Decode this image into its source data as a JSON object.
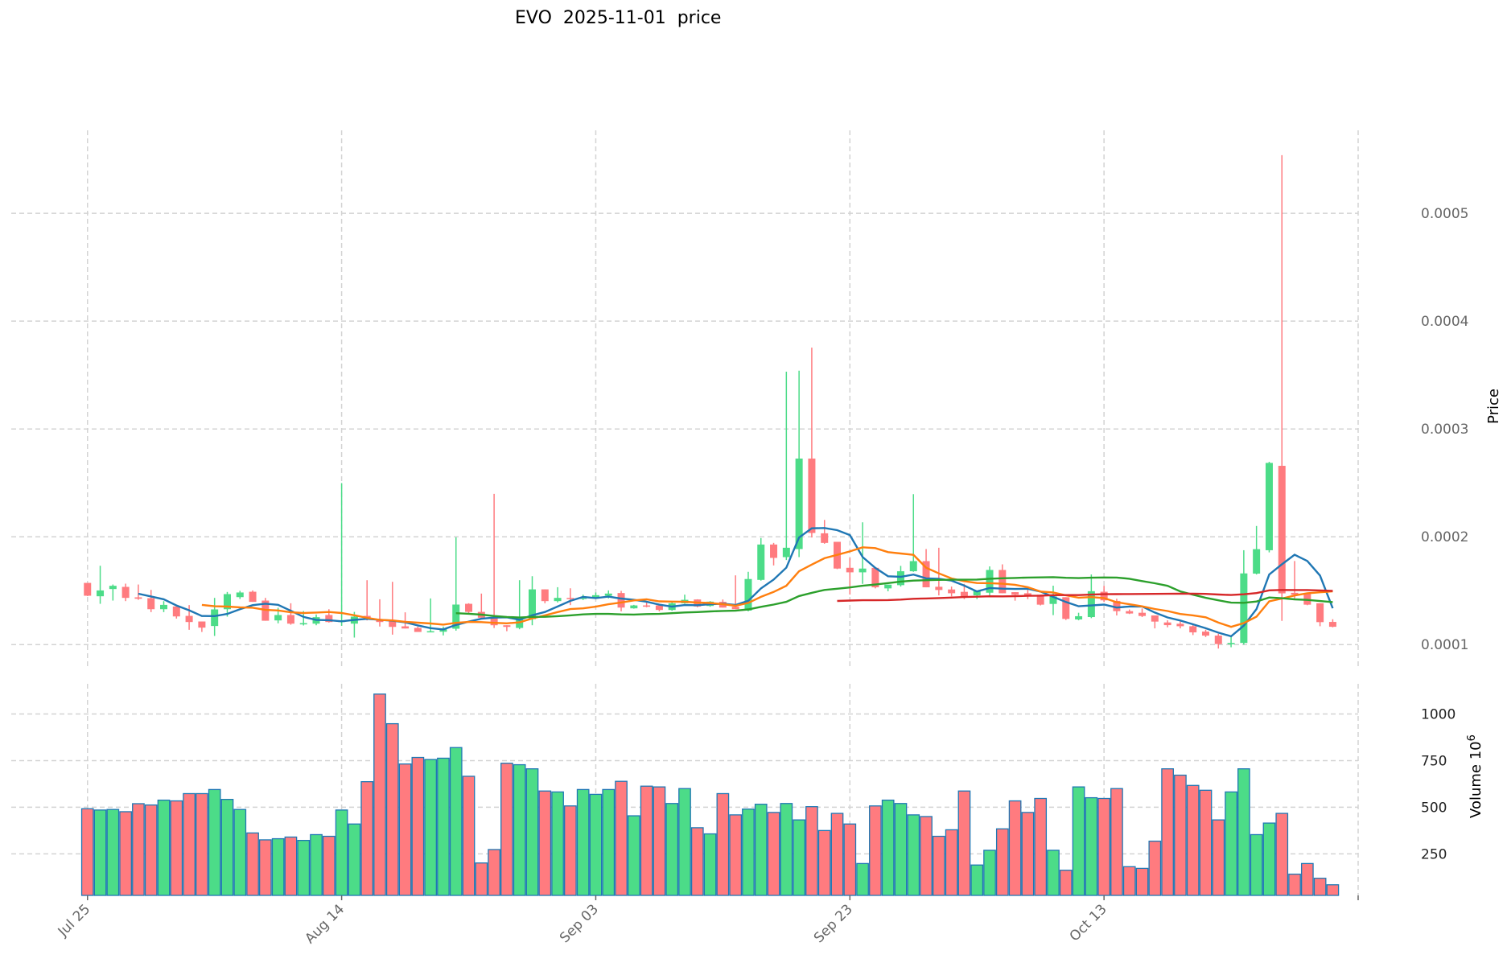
{
  "chart_data": {
    "type": "candlestick",
    "title": "EVO  2025-11-01  price",
    "start_date": "2025-07-25",
    "interval": "1D",
    "ylabel": "Price",
    "volume_ylabel": "Volume  10",
    "volume_ylabel_exp": "6",
    "xtick_labels": [
      {
        "index": 0,
        "label": "Jul 25"
      },
      {
        "index": 20,
        "label": "Aug 14"
      },
      {
        "index": 40,
        "label": "Sep 03"
      },
      {
        "index": 60,
        "label": "Sep 23"
      },
      {
        "index": 80,
        "label": "Oct 13"
      }
    ],
    "price_ticks": [
      {
        "value": 0.0001,
        "label": "0.0001"
      },
      {
        "value": 0.0002,
        "label": "0.0002"
      },
      {
        "value": 0.0003,
        "label": "0.0003"
      },
      {
        "value": 0.0004,
        "label": "0.0004"
      },
      {
        "value": 0.0005,
        "label": "0.0005"
      }
    ],
    "volume_ticks": [
      {
        "value": 250,
        "label": "250"
      },
      {
        "value": 500,
        "label": "500"
      },
      {
        "value": 750,
        "label": "750"
      },
      {
        "value": 1000,
        "label": "1000"
      }
    ],
    "price_ylim": [
      8e-05,
      0.000577
    ],
    "volume_ylim": [
      27,
      1162
    ],
    "xlim": [
      -6,
      100
    ],
    "grid": true,
    "moving_averages": [
      {
        "window": 5,
        "color": "#1f77b4"
      },
      {
        "window": 10,
        "color": "#ff7f0e"
      },
      {
        "window": 30,
        "color": "#2ca02c"
      },
      {
        "window": 60,
        "color": "#d62728"
      }
    ],
    "colors": {
      "up": "#4cdc88",
      "down": "#ff7b7f",
      "volume_edge": "#1f77b4",
      "grid": "#d3d3d3"
    },
    "ohlc": [
      [
        0.0001572,
        0.0001572,
        0.000145,
        0.0001453
      ],
      [
        0.0001448,
        0.0001731,
        0.0001378,
        0.0001502
      ],
      [
        0.0001515,
        0.0001557,
        0.0001408,
        0.0001545
      ],
      [
        0.0001535,
        0.0001565,
        0.0001403,
        0.0001433
      ],
      [
        0.0001438,
        0.0001557,
        0.0001415,
        0.0001425
      ],
      [
        0.000143,
        0.0001507,
        0.0001301,
        0.0001328
      ],
      [
        0.0001328,
        0.0001403,
        0.0001301,
        0.0001368
      ],
      [
        0.0001353,
        0.0001353,
        0.0001241,
        0.0001261
      ],
      [
        0.0001266,
        0.0001366,
        0.0001137,
        0.0001209
      ],
      [
        0.0001214,
        0.0001214,
        0.0001117,
        0.0001157
      ],
      [
        0.0001172,
        0.0001433,
        0.000108,
        0.0001326
      ],
      [
        0.0001328,
        0.0001488,
        0.0001259,
        0.0001468
      ],
      [
        0.000144,
        0.0001498,
        0.0001423,
        0.0001483
      ],
      [
        0.000149,
        0.0001502,
        0.0001396,
        0.0001396
      ],
      [
        0.0001408,
        0.0001433,
        0.0001221,
        0.0001221
      ],
      [
        0.0001224,
        0.0001341,
        0.0001197,
        0.0001274
      ],
      [
        0.0001274,
        0.0001383,
        0.0001184,
        0.0001194
      ],
      [
        0.0001187,
        0.0001311,
        0.0001177,
        0.0001199
      ],
      [
        0.0001194,
        0.0001279,
        0.0001179,
        0.0001254
      ],
      [
        0.0001274,
        0.0001328,
        0.0001204,
        0.0001209
      ],
      [
        0.0001209,
        0.0002498,
        0.0001174,
        0.0001224
      ],
      [
        0.0001194,
        0.0001303,
        0.0001065,
        0.0001259
      ],
      [
        0.0001266,
        0.0001597,
        0.0001224,
        0.0001249
      ],
      [
        0.0001229,
        0.000142,
        0.0001167,
        0.0001209
      ],
      [
        0.0001221,
        0.0001582,
        0.0001092,
        0.0001164
      ],
      [
        0.0001169,
        0.0001299,
        0.0001149,
        0.0001149
      ],
      [
        0.0001154,
        0.0001167,
        0.0001117,
        0.0001117
      ],
      [
        0.0001119,
        0.0001428,
        0.0001114,
        0.0001124
      ],
      [
        0.0001119,
        0.0001167,
        0.0001085,
        0.0001149
      ],
      [
        0.0001147,
        0.0001995,
        0.0001129,
        0.0001371
      ],
      [
        0.0001378,
        0.0001383,
        0.0001291,
        0.0001303
      ],
      [
        0.0001303,
        0.0001473,
        0.0001249,
        0.0001249
      ],
      [
        0.0001249,
        0.0002398,
        0.0001154,
        0.0001179
      ],
      [
        0.0001179,
        0.0001179,
        0.0001124,
        0.0001164
      ],
      [
        0.0001154,
        0.0001597,
        0.0001142,
        0.0001254
      ],
      [
        0.0001236,
        0.0001634,
        0.0001179,
        0.0001512
      ],
      [
        0.0001512,
        0.0001512,
        0.0001383,
        0.0001403
      ],
      [
        0.0001403,
        0.0001532,
        0.0001391,
        0.0001433
      ],
      [
        0.0001433,
        0.0001522,
        0.0001366,
        0.0001423
      ],
      [
        0.0001423,
        0.0001463,
        0.0001413,
        0.0001438
      ],
      [
        0.0001438,
        0.0001483,
        0.0001428,
        0.0001458
      ],
      [
        0.0001453,
        0.0001502,
        0.0001428,
        0.0001473
      ],
      [
        0.0001478,
        0.0001498,
        0.0001308,
        0.0001343
      ],
      [
        0.0001336,
        0.0001368,
        0.0001333,
        0.0001363
      ],
      [
        0.0001363,
        0.0001403,
        0.0001346,
        0.0001351
      ],
      [
        0.0001363,
        0.0001363,
        0.0001308,
        0.0001321
      ],
      [
        0.0001321,
        0.0001393,
        0.0001313,
        0.0001383
      ],
      [
        0.0001383,
        0.0001463,
        0.0001378,
        0.0001415
      ],
      [
        0.0001418,
        0.000142,
        0.0001346,
        0.0001353
      ],
      [
        0.0001358,
        0.0001403,
        0.0001351,
        0.0001398
      ],
      [
        0.0001396,
        0.0001418,
        0.0001343,
        0.0001343
      ],
      [
        0.0001351,
        0.0001642,
        0.0001328,
        0.0001328
      ],
      [
        0.0001315,
        0.0001675,
        0.0001308,
        0.0001608
      ],
      [
        0.00016,
        0.0001988,
        0.0001593,
        0.0001928
      ],
      [
        0.0001928,
        0.0001943,
        0.0001734,
        0.0001804
      ],
      [
        0.0001811,
        0.0003531,
        0.0001784,
        0.0001898
      ],
      [
        0.0001886,
        0.0003541,
        0.0001811,
        0.0002725
      ],
      [
        0.0002725,
        0.0003754,
        0.0001993,
        0.0002035
      ],
      [
        0.0002032,
        0.0002156,
        0.0001935,
        0.0001943
      ],
      [
        0.0001953,
        0.0001953,
        0.00017,
        0.0001705
      ],
      [
        0.0001712,
        0.0001804,
        0.0001464,
        0.000167
      ],
      [
        0.000167,
        0.0002134,
        0.0001563,
        0.0001705
      ],
      [
        0.0001712,
        0.0001712,
        0.0001521,
        0.0001531
      ],
      [
        0.0001521,
        0.0001556,
        0.0001494,
        0.0001556
      ],
      [
        0.0001551,
        0.000173,
        0.0001538,
        0.000168
      ],
      [
        0.000168,
        0.0002395,
        0.0001675,
        0.0001774
      ],
      [
        0.0001774,
        0.0001886,
        0.0001531,
        0.0001531
      ],
      [
        0.0001536,
        0.0001898,
        0.0001456,
        0.0001506
      ],
      [
        0.0001511,
        0.0001538,
        0.0001447,
        0.0001476
      ],
      [
        0.0001489,
        0.0001563,
        0.0001422,
        0.0001447
      ],
      [
        0.0001457,
        0.0001501,
        0.0001422,
        0.0001501
      ],
      [
        0.0001481,
        0.0001725,
        0.0001457,
        0.0001692
      ],
      [
        0.0001692,
        0.0001744,
        0.0001476,
        0.0001476
      ],
      [
        0.0001486,
        0.0001486,
        0.0001407,
        0.0001462
      ],
      [
        0.0001476,
        0.0001514,
        0.0001422,
        0.0001457
      ],
      [
        0.0001462,
        0.0001462,
        0.0001363,
        0.000137
      ],
      [
        0.0001377,
        0.0001546,
        0.0001273,
        0.0001447
      ],
      [
        0.0001439,
        0.0001439,
        0.0001228,
        0.0001238
      ],
      [
        0.0001233,
        0.0001295,
        0.0001225,
        0.0001263
      ],
      [
        0.0001255,
        0.000165,
        0.0001245,
        0.0001495
      ],
      [
        0.000149,
        0.0001545,
        0.0001395,
        0.000141
      ],
      [
        0.0001405,
        0.0001425,
        0.000127,
        0.000131
      ],
      [
        0.000131,
        0.0001325,
        0.0001283,
        0.0001288
      ],
      [
        0.0001295,
        0.0001335,
        0.0001255,
        0.0001265
      ],
      [
        0.000127,
        0.000127,
        0.000115,
        0.0001213
      ],
      [
        0.0001205,
        0.0001225,
        0.000116,
        0.000118
      ],
      [
        0.0001193,
        0.0001213,
        0.000115,
        0.000117
      ],
      [
        0.000117,
        0.0001188,
        0.0001088,
        0.0001113
      ],
      [
        0.000112,
        0.0001138,
        0.000107,
        0.0001083
      ],
      [
        0.0001083,
        0.00011,
        9.63e-05,
        0.0001005
      ],
      [
        0.0001003,
        0.0001075,
        9.75e-05,
        0.0001015
      ],
      [
        0.0001015,
        0.0001875,
        0.0001,
        0.000166
      ],
      [
        0.0001658,
        0.00021,
        0.000165,
        0.0001885
      ],
      [
        0.0001875,
        0.0002695,
        0.0001855,
        0.0002685
      ],
      [
        0.0002658,
        0.000554,
        0.000122,
        0.0001475
      ],
      [
        0.000148,
        0.0001775,
        0.0001413,
        0.0001463
      ],
      [
        0.0001468,
        0.000147,
        0.0001365,
        0.000137
      ],
      [
        0.0001383,
        0.0001383,
        0.000117,
        0.0001208
      ],
      [
        0.000121,
        0.0001235,
        0.000116,
        0.0001165
      ]
    ],
    "volume": [
      492,
      485,
      488,
      476,
      519,
      512,
      538,
      534,
      573,
      573,
      595,
      542,
      488,
      362,
      325,
      331,
      340,
      322,
      353,
      344,
      485,
      410,
      637,
      1107,
      948,
      732,
      767,
      756,
      763,
      820,
      666,
      201,
      273,
      736,
      728,
      706,
      587,
      582,
      507,
      595,
      569,
      595,
      639,
      454,
      613,
      609,
      520,
      600,
      390,
      357,
      573,
      459,
      490,
      516,
      472,
      520,
      432,
      503,
      375,
      467,
      410,
      198,
      507,
      538,
      520,
      459,
      450,
      344,
      379,
      587,
      190,
      269,
      384,
      534,
      472,
      547,
      269,
      162,
      609,
      551,
      547,
      600,
      181,
      172,
      318,
      706,
      672,
      617,
      591,
      432,
      582,
      706,
      353,
      415,
      467,
      141,
      198,
      119,
      84
    ]
  }
}
